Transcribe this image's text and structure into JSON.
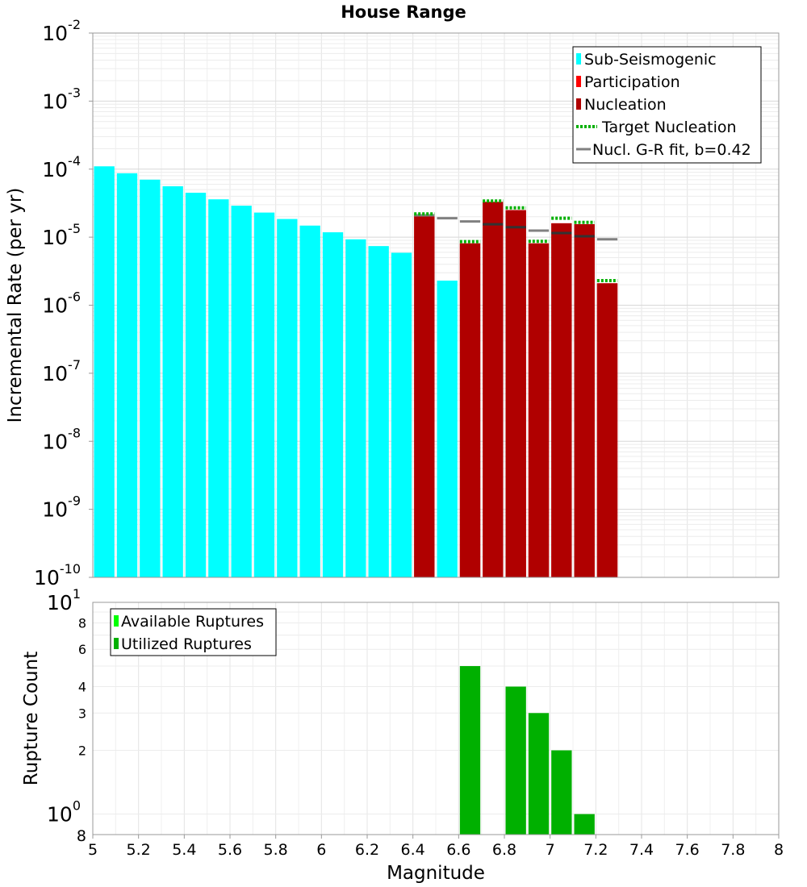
{
  "chart_data": [
    {
      "panel": "top",
      "type": "bar",
      "title": "House Range",
      "ylabel": "Incremental Rate (per yr)",
      "yscale": "log",
      "ylim": [
        1e-10,
        0.01
      ],
      "xlim": [
        5.0,
        8.0
      ],
      "y_ticks": [
        {
          "base": "10",
          "exp": "-2",
          "value": 0.01
        },
        {
          "base": "10",
          "exp": "-3",
          "value": 0.001
        },
        {
          "base": "10",
          "exp": "-4",
          "value": 0.0001
        },
        {
          "base": "10",
          "exp": "-5",
          "value": 1e-05
        },
        {
          "base": "10",
          "exp": "-6",
          "value": 1e-06
        },
        {
          "base": "10",
          "exp": "-7",
          "value": 1e-07
        },
        {
          "base": "10",
          "exp": "-8",
          "value": 1e-08
        },
        {
          "base": "10",
          "exp": "-9",
          "value": 1e-09
        },
        {
          "base": "10",
          "exp": "-10",
          "value": 1e-10
        }
      ],
      "grid": true,
      "legend_position": "top-right",
      "legend": [
        {
          "label": "Sub-Seismogenic",
          "color": "#00ffff",
          "kind": "bar"
        },
        {
          "label": "Participation",
          "color": "#ff0000",
          "kind": "bar"
        },
        {
          "label": "Nucleation",
          "color": "#b00000",
          "kind": "bar"
        },
        {
          "label": "Target Nucleation",
          "color": "#00b000",
          "kind": "dotted"
        },
        {
          "label": "Nucl. G-R fit, b=0.42",
          "color": "#808080",
          "kind": "line"
        }
      ],
      "bin_width": 0.1,
      "sub_seismogenic": {
        "color": "#00ffff",
        "x": [
          5.05,
          5.15,
          5.25,
          5.35,
          5.45,
          5.55,
          5.65,
          5.75,
          5.85,
          5.95,
          6.05,
          6.15,
          6.25,
          6.35,
          6.55
        ],
        "values": [
          0.00011,
          8.7e-05,
          7e-05,
          5.6e-05,
          4.5e-05,
          3.6e-05,
          2.9e-05,
          2.3e-05,
          1.85e-05,
          1.48e-05,
          1.18e-05,
          9.3e-06,
          7.4e-06,
          5.9e-06,
          2.3e-06
        ]
      },
      "participation": {
        "color": "#ff0000",
        "x": [
          6.45,
          6.65,
          6.75,
          6.85,
          6.95,
          7.05,
          7.15,
          7.25
        ],
        "values": [
          2.1e-05,
          8.1e-06,
          3.3e-05,
          2.5e-05,
          8.1e-06,
          1.6e-05,
          1.55e-05,
          2.1e-06
        ]
      },
      "nucleation": {
        "color": "#b00000",
        "x": [
          6.45,
          6.65,
          6.75,
          6.85,
          6.95,
          7.05,
          7.15,
          7.25
        ],
        "values": [
          2.1e-05,
          8.1e-06,
          3.3e-05,
          2.5e-05,
          8.1e-06,
          1.6e-05,
          1.55e-05,
          2.1e-06
        ]
      },
      "target_nucleation": {
        "color": "#00b000",
        "x": [
          6.45,
          6.65,
          6.75,
          6.85,
          6.95,
          7.05,
          7.15,
          7.25
        ],
        "values": [
          2.2e-05,
          8.6e-06,
          3.4e-05,
          2.7e-05,
          8.7e-06,
          1.9e-05,
          1.65e-05,
          2.3e-06
        ]
      },
      "gr_fit": {
        "color": "#808080",
        "x": [
          6.45,
          6.55,
          6.65,
          6.75,
          6.85,
          6.95,
          7.05,
          7.15,
          7.25
        ],
        "values": [
          2.1e-05,
          1.9e-05,
          1.7e-05,
          1.55e-05,
          1.4e-05,
          1.25e-05,
          1.15e-05,
          1.03e-05,
          9.3e-06
        ]
      }
    },
    {
      "panel": "bottom",
      "type": "bar",
      "xlabel": "Magnitude",
      "ylabel": "Rupture Count",
      "yscale": "log",
      "ylim": [
        0.8,
        10
      ],
      "xlim": [
        5.0,
        8.0
      ],
      "x_ticks": [
        "5",
        "5.2",
        "5.4",
        "5.6",
        "5.8",
        "6",
        "6.2",
        "6.4",
        "6.6",
        "6.8",
        "7",
        "7.2",
        "7.4",
        "7.6",
        "7.8",
        "8"
      ],
      "y_ticks": [
        {
          "label": "8",
          "value": 8
        },
        {
          "label": "6",
          "value": 6
        },
        {
          "label": "4",
          "value": 4
        },
        {
          "label": "3",
          "value": 3
        },
        {
          "label": "2",
          "value": 2
        }
      ],
      "y_power_ticks": [
        {
          "base": "10",
          "exp": "1",
          "value": 10
        },
        {
          "base": "10",
          "exp": "0",
          "value": 1
        }
      ],
      "y_min_label": "8",
      "grid": true,
      "legend_position": "top-left",
      "legend": [
        {
          "label": "Available Ruptures",
          "color": "#00ff00"
        },
        {
          "label": "Utilized Ruptures",
          "color": "#00b000"
        }
      ],
      "bin_width": 0.1,
      "utilized": {
        "color": "#00b000",
        "x": [
          6.65,
          6.85,
          6.95,
          7.05,
          7.15
        ],
        "values": [
          5,
          4,
          3,
          2,
          1
        ]
      }
    }
  ]
}
